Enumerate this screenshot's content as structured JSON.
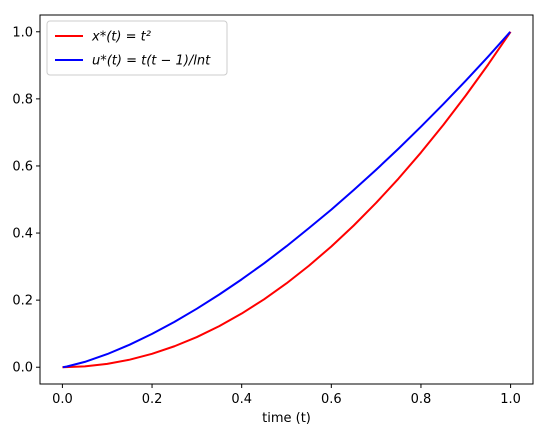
{
  "chart_data": {
    "type": "line",
    "title": "",
    "xlabel": "time (t)",
    "ylabel": "",
    "xlim": [
      -0.05,
      1.05
    ],
    "ylim": [
      -0.05,
      1.05
    ],
    "xticks": [
      0.0,
      0.2,
      0.4,
      0.6,
      0.8,
      1.0
    ],
    "xtick_labels": [
      "0.0",
      "0.2",
      "0.4",
      "0.6",
      "0.8",
      "1.0"
    ],
    "yticks": [
      0.0,
      0.2,
      0.4,
      0.6,
      0.8,
      1.0
    ],
    "ytick_labels": [
      "0.0",
      "0.2",
      "0.4",
      "0.6",
      "0.8",
      "1.0"
    ],
    "grid": false,
    "legend_position": "top-left",
    "series": [
      {
        "name": "x*(t) = t²",
        "color": "#ff0000",
        "x": [
          0.0,
          0.05,
          0.1,
          0.15,
          0.2,
          0.25,
          0.3,
          0.35,
          0.4,
          0.45,
          0.5,
          0.55,
          0.6,
          0.65,
          0.7,
          0.75,
          0.8,
          0.85,
          0.9,
          0.95,
          1.0
        ],
        "y": [
          0.0,
          0.0025,
          0.01,
          0.0225,
          0.04,
          0.0625,
          0.09,
          0.1225,
          0.16,
          0.2025,
          0.25,
          0.3025,
          0.36,
          0.4225,
          0.49,
          0.5625,
          0.64,
          0.7225,
          0.81,
          0.9025,
          1.0
        ]
      },
      {
        "name": "u*(t) = t(t − 1)/lnt",
        "color": "#0000ff",
        "x": [
          0.001,
          0.01,
          0.05,
          0.1,
          0.15,
          0.2,
          0.25,
          0.3,
          0.35,
          0.4,
          0.45,
          0.5,
          0.55,
          0.6,
          0.65,
          0.7,
          0.75,
          0.8,
          0.85,
          0.9,
          0.95,
          0.999
        ],
        "y": [
          0.0001,
          0.0021,
          0.0159,
          0.0391,
          0.0672,
          0.0994,
          0.1353,
          0.1745,
          0.2168,
          0.2619,
          0.3098,
          0.3607,
          0.4146,
          0.4698,
          0.5282,
          0.5888,
          0.6517,
          0.717,
          0.7845,
          0.8543,
          0.9262,
          0.9995
        ]
      }
    ]
  }
}
